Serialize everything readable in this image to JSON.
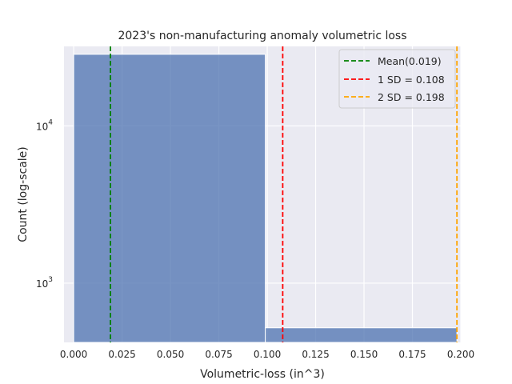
{
  "chart_data": {
    "type": "bar",
    "title": "2023's non-manufacturing anomaly volumetric loss",
    "xlabel": "Volumetric-loss (in^3)",
    "ylabel": "Count (log-scale)",
    "xlim": [
      -0.005,
      0.2
    ],
    "ylim": [
      420,
      32000
    ],
    "y_scale": "log",
    "grid": true,
    "legend_position": "top-right",
    "x_ticks": [
      "0.000",
      "0.025",
      "0.050",
      "0.075",
      "0.100",
      "0.125",
      "0.150",
      "0.175",
      "0.200"
    ],
    "x_tick_values": [
      0,
      0.025,
      0.05,
      0.075,
      0.1,
      0.125,
      0.15,
      0.175,
      0.2
    ],
    "y_ticks": [
      {
        "base": "10",
        "exp": "3",
        "value": 1000
      },
      {
        "base": "10",
        "exp": "4",
        "value": 10000
      }
    ],
    "bins": [
      {
        "x0": 0.0,
        "x1": 0.099,
        "count": 28500
      },
      {
        "x0": 0.099,
        "x1": 0.198,
        "count": 520
      }
    ],
    "reference_lines": [
      {
        "label": "Mean(0.019)",
        "x": 0.019,
        "color": "#008000"
      },
      {
        "label": "1 SD = 0.108",
        "x": 0.108,
        "color": "#ff0000"
      },
      {
        "label": "2 SD = 0.198",
        "x": 0.198,
        "color": "#ffa500"
      }
    ],
    "bar_color": "#4c72b0",
    "plot_background": "#eaeaf2"
  }
}
